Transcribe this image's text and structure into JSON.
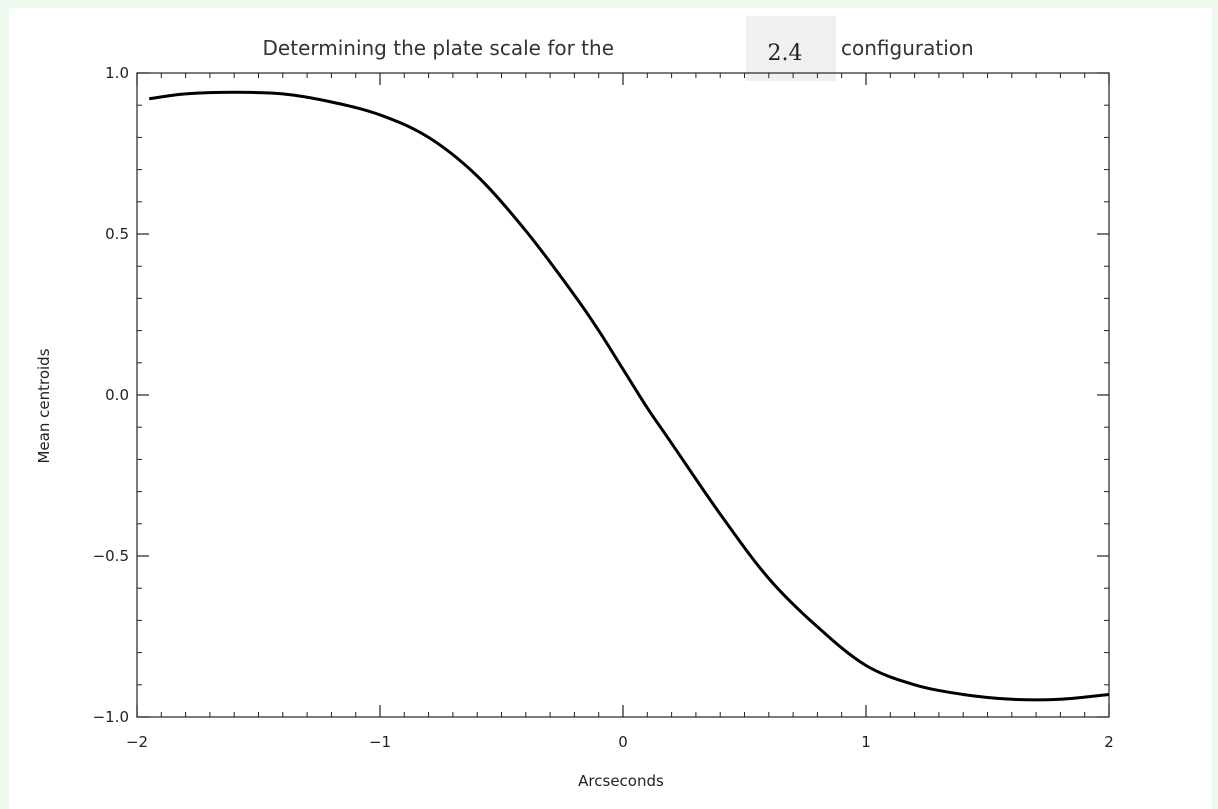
{
  "chart_data": {
    "type": "line",
    "title_prefix": "Determining the plate scale for the",
    "title_value": "2.4",
    "title_suffix": "configuration",
    "xlabel": "Arcseconds",
    "ylabel": "Mean centroids",
    "xlim": [
      -2,
      2
    ],
    "ylim": [
      -1,
      1
    ],
    "xticks": [
      -2,
      -1,
      0,
      1,
      2
    ],
    "xtick_labels": [
      "−2",
      "−1",
      "0",
      "1",
      "2"
    ],
    "yticks": [
      1.0,
      0.5,
      0.0,
      -0.5,
      -1.0
    ],
    "ytick_labels": [
      "1.0",
      "0.5",
      "0.0",
      "−0.5",
      "−1.0"
    ],
    "grid": false,
    "series": [
      {
        "x": [
          -1.95,
          -1.8,
          -1.6,
          -1.4,
          -1.2,
          -1.0,
          -0.8,
          -0.6,
          -0.4,
          -0.2,
          -0.1,
          0.0,
          0.1,
          0.2,
          0.4,
          0.6,
          0.8,
          1.0,
          1.2,
          1.4,
          1.6,
          1.8,
          2.0
        ],
        "y": [
          0.92,
          0.935,
          0.94,
          0.935,
          0.91,
          0.87,
          0.8,
          0.68,
          0.51,
          0.31,
          0.2,
          0.08,
          -0.04,
          -0.15,
          -0.37,
          -0.57,
          -0.72,
          -0.84,
          -0.9,
          -0.93,
          -0.945,
          -0.945,
          -0.93
        ]
      }
    ]
  }
}
